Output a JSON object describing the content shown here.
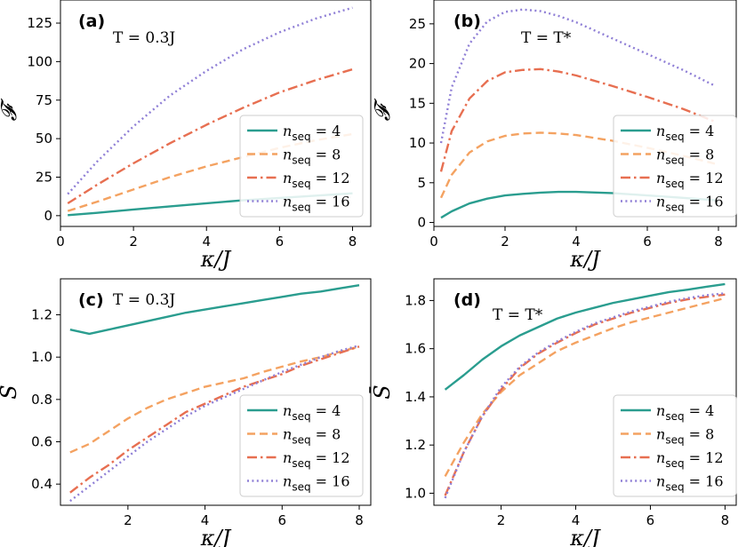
{
  "chart_data": [
    {
      "type": "line",
      "panel": "(a)",
      "annotation": "T = 0.3J",
      "xlabel": "κ/J",
      "ylabel": "𝓕",
      "xlim": [
        0,
        8.5
      ],
      "ylim": [
        -7,
        140
      ],
      "xticks": [
        0,
        2,
        4,
        6,
        8
      ],
      "yticks": [
        0,
        25,
        50,
        75,
        100,
        125
      ],
      "legend_position": "lower right",
      "x": [
        0.2,
        1,
        2,
        3,
        4,
        5,
        6,
        7,
        8
      ],
      "series": [
        {
          "name": "n_seq = 4",
          "values": [
            0.3,
            1.8,
            4,
            6,
            8,
            10,
            11.5,
            13,
            14.5
          ]
        },
        {
          "name": "n_seq = 8",
          "values": [
            3,
            9,
            17,
            25,
            32,
            38,
            44,
            49,
            53
          ]
        },
        {
          "name": "n_seq = 12",
          "values": [
            8,
            20,
            34,
            47,
            59,
            70,
            80,
            88,
            95
          ]
        },
        {
          "name": "n_seq = 16",
          "values": [
            14,
            35,
            58,
            78,
            94,
            108,
            119,
            128,
            135
          ]
        }
      ]
    },
    {
      "type": "line",
      "panel": "(b)",
      "annotation": "T = T*",
      "xlabel": "κ/J",
      "ylabel": "𝓕",
      "xlim": [
        0,
        8.5
      ],
      "ylim": [
        -0.5,
        28
      ],
      "xticks": [
        0,
        2,
        4,
        6,
        8
      ],
      "yticks": [
        0,
        5,
        10,
        15,
        20,
        25
      ],
      "legend_position": "lower right",
      "x": [
        0.2,
        0.5,
        1,
        1.5,
        2,
        2.5,
        3,
        3.5,
        4,
        5,
        6,
        7,
        7.9
      ],
      "series": [
        {
          "name": "n_seq = 4",
          "values": [
            0.6,
            1.4,
            2.4,
            3.0,
            3.4,
            3.6,
            3.75,
            3.85,
            3.85,
            3.7,
            3.4,
            3.1,
            2.8
          ]
        },
        {
          "name": "n_seq = 8",
          "values": [
            3.1,
            6.0,
            8.8,
            10.2,
            10.9,
            11.2,
            11.3,
            11.2,
            11.0,
            10.3,
            9.4,
            8.4,
            7.4
          ]
        },
        {
          "name": "n_seq = 12",
          "values": [
            6.4,
            11.5,
            15.6,
            17.8,
            18.9,
            19.2,
            19.3,
            19.0,
            18.5,
            17.2,
            15.8,
            14.3,
            12.7
          ]
        },
        {
          "name": "n_seq = 16",
          "values": [
            10,
            17,
            22.5,
            25.3,
            26.5,
            26.8,
            26.6,
            26.0,
            25.2,
            23.2,
            21.2,
            19.2,
            17.2
          ]
        }
      ]
    },
    {
      "type": "line",
      "panel": "(c)",
      "annotation": "T = 0.3J",
      "xlabel": "κ/J",
      "ylabel": "S̄",
      "xlim": [
        0.25,
        8.3
      ],
      "ylim": [
        0.3,
        1.37
      ],
      "xticks": [
        2,
        4,
        6,
        8
      ],
      "yticks": [
        0.4,
        0.6,
        0.8,
        1.0,
        1.2
      ],
      "legend_position": "lower right",
      "x": [
        0.5,
        1,
        1.5,
        2,
        2.5,
        3,
        3.5,
        4,
        4.5,
        5,
        5.5,
        6,
        6.5,
        7,
        7.5,
        8
      ],
      "series": [
        {
          "name": "n_seq = 4",
          "values": [
            1.13,
            1.11,
            1.13,
            1.15,
            1.17,
            1.19,
            1.21,
            1.225,
            1.24,
            1.255,
            1.27,
            1.285,
            1.3,
            1.31,
            1.325,
            1.34
          ]
        },
        {
          "name": "n_seq = 8",
          "values": [
            0.55,
            0.59,
            0.65,
            0.71,
            0.76,
            0.8,
            0.83,
            0.86,
            0.88,
            0.9,
            0.93,
            0.955,
            0.98,
            1.0,
            1.025,
            1.05
          ]
        },
        {
          "name": "n_seq = 12",
          "values": [
            0.36,
            0.43,
            0.49,
            0.56,
            0.62,
            0.68,
            0.74,
            0.78,
            0.82,
            0.86,
            0.89,
            0.92,
            0.96,
            0.99,
            1.02,
            1.05
          ]
        },
        {
          "name": "n_seq = 16",
          "values": [
            0.32,
            0.39,
            0.46,
            0.53,
            0.6,
            0.66,
            0.72,
            0.77,
            0.81,
            0.85,
            0.89,
            0.93,
            0.965,
            1.0,
            1.03,
            1.055
          ]
        }
      ]
    },
    {
      "type": "line",
      "panel": "(d)",
      "annotation": "T = T*",
      "xlabel": "κ/J",
      "ylabel": "S̄",
      "xlim": [
        0.2,
        8.3
      ],
      "ylim": [
        0.95,
        1.89
      ],
      "xticks": [
        2,
        4,
        6,
        8
      ],
      "yticks": [
        1.0,
        1.2,
        1.4,
        1.6,
        1.8
      ],
      "legend_position": "lower right",
      "x": [
        0.5,
        1,
        1.5,
        2,
        2.5,
        3,
        3.5,
        4,
        4.5,
        5,
        5.5,
        6,
        6.5,
        7,
        7.5,
        8
      ],
      "series": [
        {
          "name": "n_seq = 4",
          "values": [
            1.43,
            1.49,
            1.555,
            1.61,
            1.655,
            1.69,
            1.725,
            1.75,
            1.77,
            1.79,
            1.805,
            1.82,
            1.835,
            1.845,
            1.857,
            1.868
          ]
        },
        {
          "name": "n_seq = 8",
          "values": [
            1.07,
            1.21,
            1.33,
            1.42,
            1.49,
            1.54,
            1.59,
            1.625,
            1.655,
            1.685,
            1.71,
            1.73,
            1.75,
            1.77,
            1.79,
            1.81
          ]
        },
        {
          "name": "n_seq = 12",
          "values": [
            0.99,
            1.17,
            1.32,
            1.43,
            1.52,
            1.58,
            1.625,
            1.665,
            1.7,
            1.725,
            1.75,
            1.77,
            1.79,
            1.805,
            1.815,
            1.825
          ]
        },
        {
          "name": "n_seq = 16",
          "values": [
            0.98,
            1.17,
            1.32,
            1.44,
            1.525,
            1.585,
            1.63,
            1.67,
            1.705,
            1.73,
            1.755,
            1.775,
            1.795,
            1.81,
            1.822,
            1.83
          ]
        }
      ]
    }
  ],
  "styles": {
    "colors": [
      "#2a9d8f",
      "#f4a261",
      "#e76f51",
      "#8f7fd6"
    ],
    "dashes": [
      "",
      "9 5",
      "11 4 2.5 4",
      "2 3.4"
    ]
  },
  "legend_labels": [
    "4",
    "8",
    "12",
    "16"
  ]
}
